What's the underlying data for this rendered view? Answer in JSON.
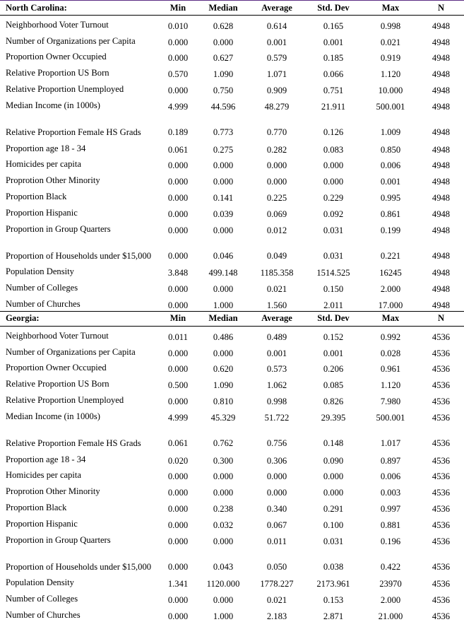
{
  "columns": [
    "Min",
    "Median",
    "Average",
    "Std. Dev",
    "Max",
    "N"
  ],
  "sections": [
    {
      "title": "North Carolina:",
      "rows": [
        {
          "label": "Neighborhood Voter Turnout",
          "min": "0.010",
          "median": "0.628",
          "average": "0.614",
          "sd": "0.165",
          "max": "0.998",
          "n": "4948"
        },
        {
          "label": "Number of Organizations per Capita",
          "min": "0.000",
          "median": "0.000",
          "average": "0.001",
          "sd": "0.001",
          "max": "0.021",
          "n": "4948"
        },
        {
          "label": "Proportion Owner Occupied",
          "min": "0.000",
          "median": "0.627",
          "average": "0.579",
          "sd": "0.185",
          "max": "0.919",
          "n": "4948"
        },
        {
          "label": "Relative Proportion US Born",
          "min": "0.570",
          "median": "1.090",
          "average": "1.071",
          "sd": "0.066",
          "max": "1.120",
          "n": "4948"
        },
        {
          "label": "Relative Proportion Unemployed",
          "min": "0.000",
          "median": "0.750",
          "average": "0.909",
          "sd": "0.751",
          "max": "10.000",
          "n": "4948"
        },
        {
          "label": "Median Income (in 1000s)",
          "min": "4.999",
          "median": "44.596",
          "average": "48.279",
          "sd": "21.911",
          "max": "500.001",
          "n": "4948"
        },
        {
          "label": "Relative Proportion Female HS Grads",
          "min": "0.189",
          "median": "0.773",
          "average": "0.770",
          "sd": "0.126",
          "max": "1.009",
          "n": "4948",
          "tall": true
        },
        {
          "label": "Proportion age 18 - 34",
          "min": "0.061",
          "median": "0.275",
          "average": "0.282",
          "sd": "0.083",
          "max": "0.850",
          "n": "4948"
        },
        {
          "label": "Homicides per capita",
          "min": "0.000",
          "median": "0.000",
          "average": "0.000",
          "sd": "0.000",
          "max": "0.006",
          "n": "4948"
        },
        {
          "label": "Proprotion Other Minority",
          "min": "0.000",
          "median": "0.000",
          "average": "0.000",
          "sd": "0.000",
          "max": "0.001",
          "n": "4948"
        },
        {
          "label": "Proportion Black",
          "min": "0.000",
          "median": "0.141",
          "average": "0.225",
          "sd": "0.229",
          "max": "0.995",
          "n": "4948"
        },
        {
          "label": "Proportion Hispanic",
          "min": "0.000",
          "median": "0.039",
          "average": "0.069",
          "sd": "0.092",
          "max": "0.861",
          "n": "4948"
        },
        {
          "label": "Proportion in Group Quarters",
          "min": "0.000",
          "median": "0.000",
          "average": "0.012",
          "sd": "0.031",
          "max": "0.199",
          "n": "4948"
        },
        {
          "label": "Proportion of Households under $15,000",
          "min": "0.000",
          "median": "0.046",
          "average": "0.049",
          "sd": "0.031",
          "max": "0.221",
          "n": "4948",
          "tall": true
        },
        {
          "label": "Population Density",
          "min": "3.848",
          "median": "499.148",
          "average": "1185.358",
          "sd": "1514.525",
          "max": "16245",
          "n": "4948"
        },
        {
          "label": "Number of Colleges",
          "min": "0.000",
          "median": "0.000",
          "average": "0.021",
          "sd": "0.150",
          "max": "2.000",
          "n": "4948"
        },
        {
          "label": "Number of Churches",
          "min": "0.000",
          "median": "1.000",
          "average": "1.560",
          "sd": "2.011",
          "max": "17.000",
          "n": "4948"
        }
      ]
    },
    {
      "title": "Georgia:",
      "rows": [
        {
          "label": "Neighborhood Voter Turnout",
          "min": "0.011",
          "median": "0.486",
          "average": "0.489",
          "sd": "0.152",
          "max": "0.992",
          "n": "4536"
        },
        {
          "label": "Number of Organizations per Capita",
          "min": "0.000",
          "median": "0.000",
          "average": "0.001",
          "sd": "0.001",
          "max": "0.028",
          "n": "4536"
        },
        {
          "label": "Proportion Owner Occupied",
          "min": "0.000",
          "median": "0.620",
          "average": "0.573",
          "sd": "0.206",
          "max": "0.961",
          "n": "4536"
        },
        {
          "label": "Relative Proportion US Born",
          "min": "0.500",
          "median": "1.090",
          "average": "1.062",
          "sd": "0.085",
          "max": "1.120",
          "n": "4536"
        },
        {
          "label": "Relative Proportion Unemployed",
          "min": "0.000",
          "median": "0.810",
          "average": "0.998",
          "sd": "0.826",
          "max": "7.980",
          "n": "4536"
        },
        {
          "label": "Median Income (in 1000s)",
          "min": "4.999",
          "median": "45.329",
          "average": "51.722",
          "sd": "29.395",
          "max": "500.001",
          "n": "4536"
        },
        {
          "label": "Relative Proportion Female HS Grads",
          "min": "0.061",
          "median": "0.762",
          "average": "0.756",
          "sd": "0.148",
          "max": "1.017",
          "n": "4536",
          "tall": true
        },
        {
          "label": "Proportion age 18 - 34",
          "min": "0.020",
          "median": "0.300",
          "average": "0.306",
          "sd": "0.090",
          "max": "0.897",
          "n": "4536"
        },
        {
          "label": "Homicides per capita",
          "min": "0.000",
          "median": "0.000",
          "average": "0.000",
          "sd": "0.000",
          "max": "0.006",
          "n": "4536"
        },
        {
          "label": "Proprotion Other Minority",
          "min": "0.000",
          "median": "0.000",
          "average": "0.000",
          "sd": "0.000",
          "max": "0.003",
          "n": "4536"
        },
        {
          "label": "Proportion Black",
          "min": "0.000",
          "median": "0.238",
          "average": "0.340",
          "sd": "0.291",
          "max": "0.997",
          "n": "4536"
        },
        {
          "label": "Proportion Hispanic",
          "min": "0.000",
          "median": "0.032",
          "average": "0.067",
          "sd": "0.100",
          "max": "0.881",
          "n": "4536"
        },
        {
          "label": "Proportion in Group Quarters",
          "min": "0.000",
          "median": "0.000",
          "average": "0.011",
          "sd": "0.031",
          "max": "0.196",
          "n": "4536"
        },
        {
          "label": "Proportion of Households under $15,000",
          "min": "0.000",
          "median": "0.043",
          "average": "0.050",
          "sd": "0.038",
          "max": "0.422",
          "n": "4536",
          "tall": true
        },
        {
          "label": "Population Density",
          "min": "1.341",
          "median": "1120.000",
          "average": "1778.227",
          "sd": "2173.961",
          "max": "23970",
          "n": "4536"
        },
        {
          "label": "Number of Colleges",
          "min": "0.000",
          "median": "0.000",
          "average": "0.021",
          "sd": "0.153",
          "max": "2.000",
          "n": "4536"
        },
        {
          "label": "Number of Churches",
          "min": "0.000",
          "median": "1.000",
          "average": "2.183",
          "sd": "2.871",
          "max": "21.000",
          "n": "4536"
        }
      ]
    }
  ]
}
